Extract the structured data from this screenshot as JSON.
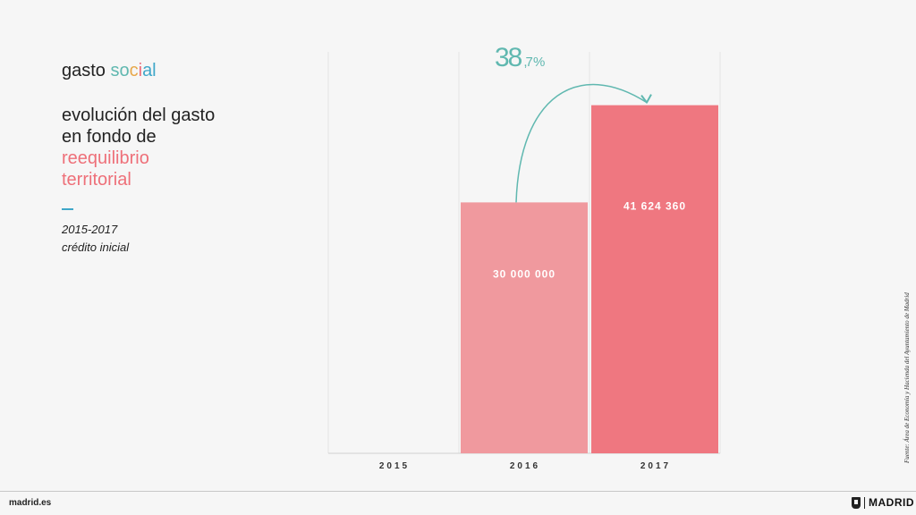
{
  "header": {
    "brand_prefix": "gasto ",
    "brand_social_letters": [
      "so",
      "c",
      "i",
      "al"
    ],
    "title_lines": [
      "evolución del gasto",
      "en fondo de"
    ],
    "title_highlight_lines": [
      "reequilibrio",
      "territorial"
    ],
    "years": "2015-2017",
    "subtitle": "crédito inicial"
  },
  "source": "Fuente: Área de Economía y Hacienda del Ayuntamiento de Madrid",
  "footer": {
    "site": "madrid.es",
    "logo_text": "MADRID"
  },
  "colors": {
    "bar_2016": "#f0999e",
    "bar_2017": "#ef7780",
    "accent": "#60b8b0",
    "pink": "#ee7079"
  },
  "chart_data": {
    "type": "bar",
    "categories": [
      "2015",
      "2016",
      "2017"
    ],
    "values": [
      null,
      30000000,
      41624360
    ],
    "value_labels": [
      "",
      "30 000 000",
      "41 624 360"
    ],
    "ylim": [
      0,
      48000000
    ],
    "grid": "vertical separators",
    "annotation": {
      "big": "38",
      "small": ",7 %",
      "from": "2016",
      "to": "2017"
    },
    "title": "",
    "xlabel": "",
    "ylabel": ""
  }
}
